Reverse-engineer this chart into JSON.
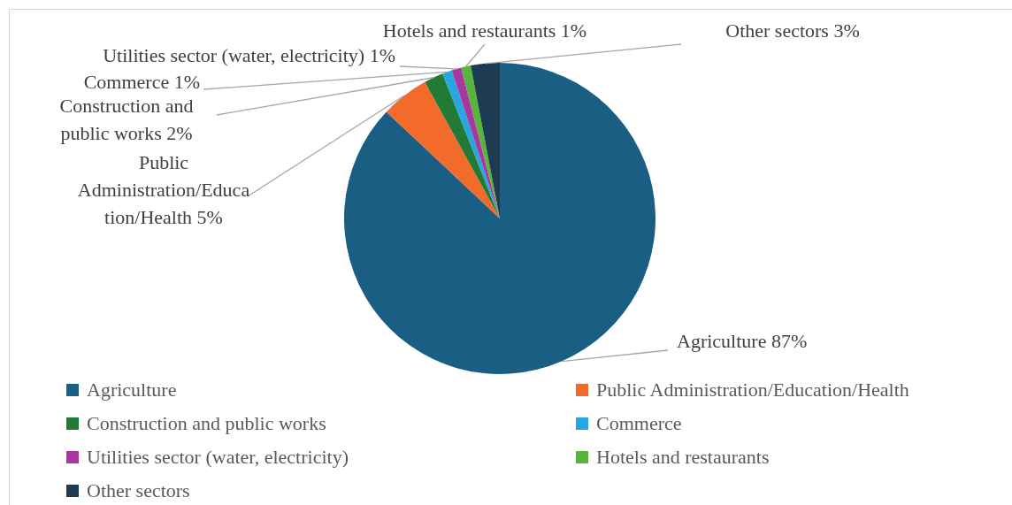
{
  "chart_data": {
    "type": "pie",
    "categories": [
      "Agriculture",
      "Public Administration/Education/Health",
      "Construction and public works",
      "Commerce",
      "Utilities sector (water, electricity)",
      "Hotels and restaurants",
      "Other sectors"
    ],
    "values": [
      87,
      5,
      2,
      1,
      1,
      1,
      3
    ],
    "value_labels": [
      "87%",
      "5%",
      "2%",
      "1%",
      "1%",
      "1%",
      "3%"
    ],
    "colors": [
      "#1a5e84",
      "#f26b2a",
      "#237a36",
      "#27a6df",
      "#a9379f",
      "#58b33f",
      "#1d3c52"
    ],
    "legend": "bottom"
  }
}
